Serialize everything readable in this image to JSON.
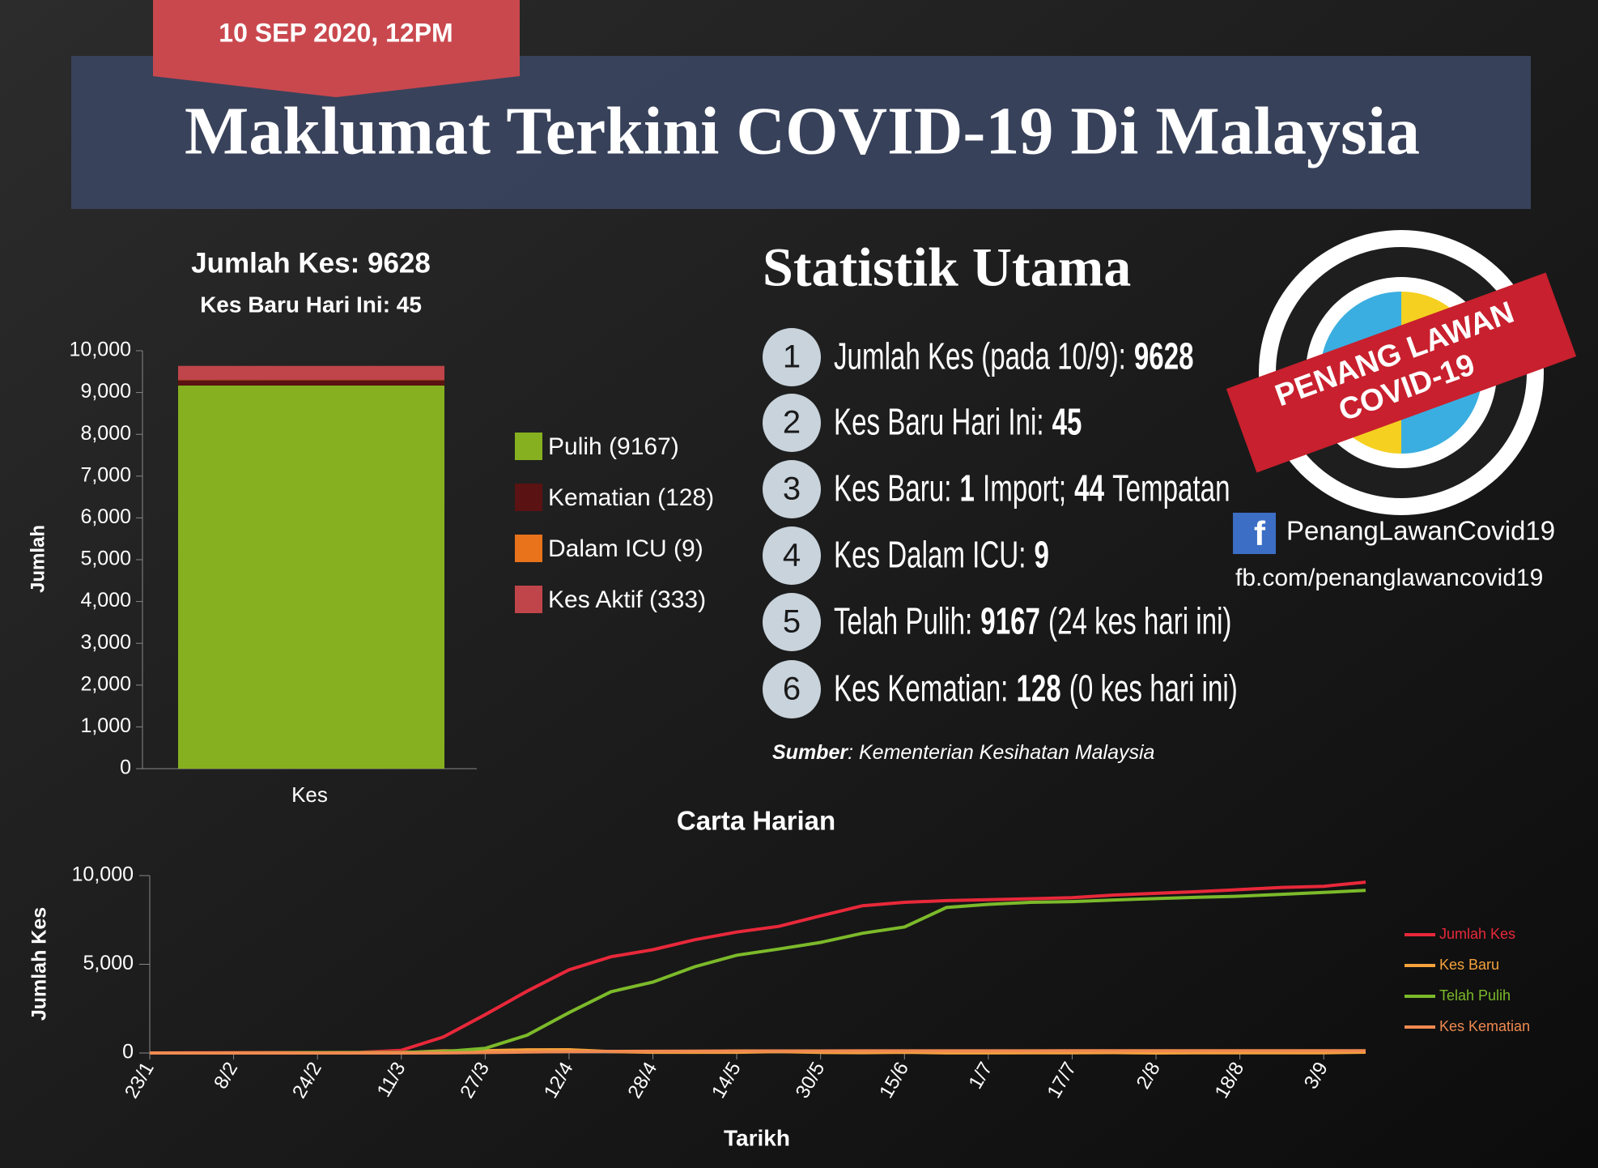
{
  "header": {
    "date": "10 SEP 2020, 12PM",
    "title": "Maklumat Terkini COVID-19 Di Malaysia"
  },
  "chart_data": [
    {
      "type": "bar",
      "stacked": true,
      "title": "Jumlah Kes: 9628",
      "subtitle": "Kes Baru Hari Ini: 45",
      "y_label": "Jumlah",
      "categories": [
        "Kes"
      ],
      "series": [
        {
          "name": "Pulih (9167)",
          "color": "#86b01f",
          "values": [
            9167
          ]
        },
        {
          "name": "Kematian (128)",
          "color": "#5a1212",
          "values": [
            128
          ]
        },
        {
          "name": "Dalam ICU (9)",
          "color": "#e8731b",
          "values": [
            9
          ]
        },
        {
          "name": "Kes Aktif (333)",
          "color": "#c0454a",
          "values": [
            333
          ]
        }
      ],
      "ylim": [
        0,
        10000
      ],
      "yticks": [
        0,
        {
          "value": 1000,
          "label": "1,000"
        },
        {
          "value": 2000,
          "label": "2,000"
        },
        {
          "value": 3000,
          "label": "3,000"
        },
        {
          "value": 4000,
          "label": "4,000"
        },
        {
          "value": 5000,
          "label": "5,000"
        },
        {
          "value": 6000,
          "label": "6,000"
        },
        {
          "value": 7000,
          "label": "7,000"
        },
        {
          "value": 8000,
          "label": "8,000"
        },
        {
          "value": 9000,
          "label": "9,000"
        },
        {
          "value": 10000,
          "label": "10,000"
        }
      ]
    },
    {
      "type": "line",
      "title": "Carta Harian",
      "x_label": "Tarikh",
      "y_label": "Jumlah Kes",
      "categories": [
        "23/1",
        null,
        "8/2",
        null,
        "24/2",
        null,
        "11/3",
        null,
        "27/3",
        null,
        "12/4",
        null,
        "28/4",
        null,
        "14/5",
        null,
        "30/5",
        null,
        "15/6",
        null,
        "1/7",
        null,
        "17/7",
        null,
        "2/8",
        null,
        "18/8",
        null,
        "3/9",
        null
      ],
      "series": [
        {
          "name": "Jumlah Kes",
          "color": "#e8283a",
          "values": [
            0,
            8,
            17,
            22,
            22,
            36,
            149,
            900,
            2161,
            3483,
            4683,
            5425,
            5820,
            6383,
            6819,
            7137,
            7732,
            8303,
            8494,
            8587,
            8640,
            8696,
            8755,
            8904,
            9002,
            9094,
            9212,
            9334,
            9397,
            9628
          ]
        },
        {
          "name": "Kes Baru",
          "color": "#f5a23c",
          "values": [
            0,
            0,
            0,
            0,
            0,
            0,
            20,
            117,
            130,
            179,
            184,
            84,
            40,
            39,
            40,
            78,
            30,
            19,
            41,
            3,
            3,
            13,
            10,
            23,
            0,
            7,
            8,
            10,
            12,
            45
          ]
        },
        {
          "name": "Telah Pulih",
          "color": "#7cba2a",
          "values": [
            0,
            0,
            3,
            15,
            22,
            24,
            26,
            75,
            259,
            1005,
            2276,
            3452,
            3995,
            4864,
            5512,
            5859,
            6235,
            6750,
            7100,
            8200,
            8377,
            8491,
            8534,
            8627,
            8703,
            8780,
            8838,
            8944,
            9052,
            9167
          ]
        },
        {
          "name": "Kes Kematian",
          "color": "#f08a50",
          "values": [
            0,
            0,
            0,
            0,
            0,
            0,
            0,
            3,
            26,
            57,
            77,
            92,
            98,
            105,
            112,
            115,
            115,
            118,
            121,
            121,
            121,
            121,
            122,
            124,
            125,
            125,
            125,
            128,
            128,
            128
          ]
        }
      ],
      "ylim": [
        0,
        10000
      ],
      "yticks": [
        0,
        {
          "value": 5000,
          "label": "5,000"
        },
        {
          "value": 10000,
          "label": "10,000"
        }
      ]
    }
  ],
  "stats": {
    "title": "Statistik Utama",
    "items": [
      {
        "number": "1",
        "parts": [
          "Jumlah Kes (pada 10/9):",
          "9628"
        ]
      },
      {
        "number": "2",
        "parts": [
          "Kes Baru Hari Ini:",
          "45"
        ]
      },
      {
        "number": "3",
        "parts": [
          "Kes Baru:",
          "1",
          "Import;",
          "44",
          "Tempatan"
        ]
      },
      {
        "number": "4",
        "parts": [
          "Kes Dalam ICU:",
          "9"
        ]
      },
      {
        "number": "5",
        "parts": [
          "Telah Pulih:",
          "9167",
          "(24 kes hari ini)"
        ]
      },
      {
        "number": "6",
        "parts": [
          "Kes Kematian:",
          "128",
          "(0 kes hari ini)"
        ]
      }
    ],
    "source": {
      "label": "Sumber",
      "text": ": Kementerian Kesihatan Malaysia"
    }
  },
  "logo": {
    "line1": "PENANG LAWAN",
    "line2": "COVID-19",
    "icon": "f",
    "facebook": "PenangLawanCovid19",
    "url": "fb.com/penanglawancovid19"
  }
}
